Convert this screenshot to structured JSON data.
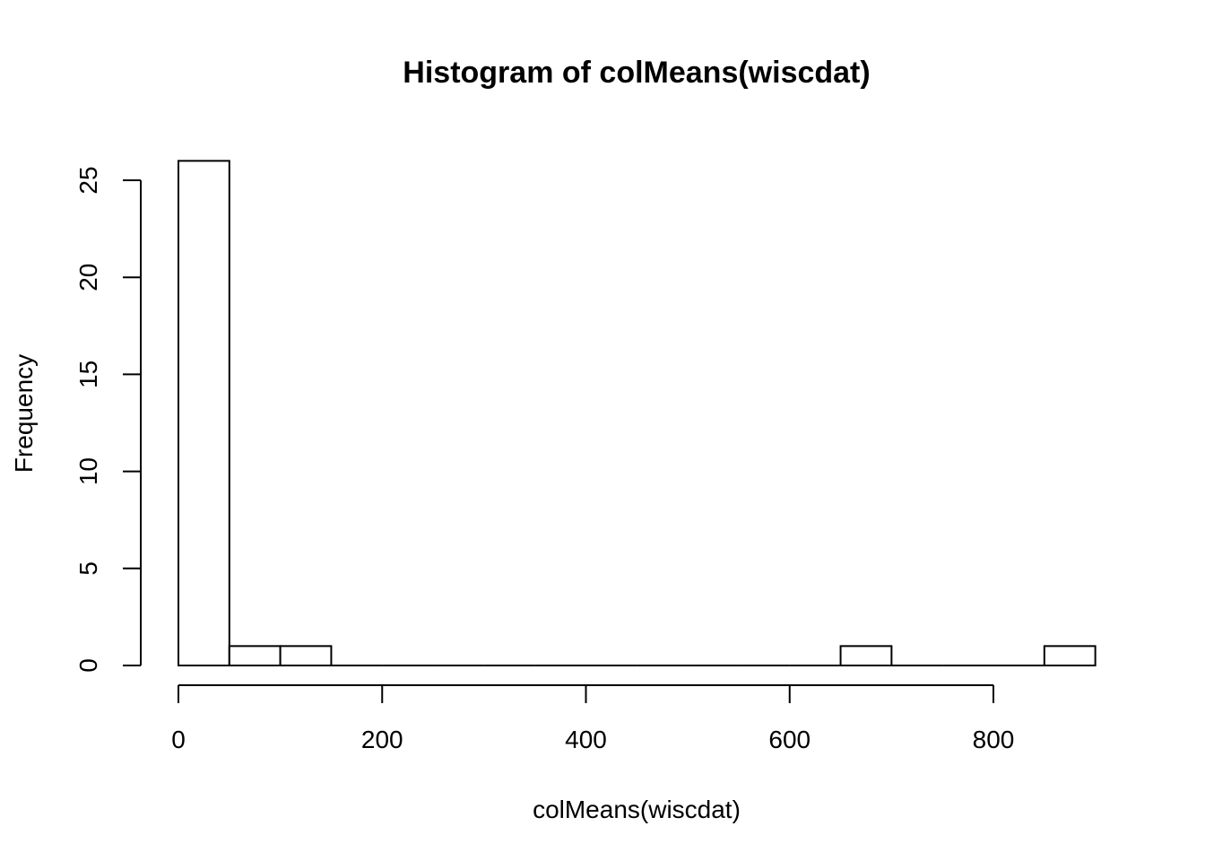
{
  "chart_data": {
    "type": "bar",
    "subtype": "histogram",
    "title": "Histogram of colMeans(wiscdat)",
    "xlabel": "colMeans(wiscdat)",
    "ylabel": "Frequency",
    "bin_width": 50,
    "bins": [
      {
        "start": 0,
        "end": 50,
        "count": 26
      },
      {
        "start": 50,
        "end": 100,
        "count": 1
      },
      {
        "start": 100,
        "end": 150,
        "count": 1
      },
      {
        "start": 150,
        "end": 200,
        "count": 0
      },
      {
        "start": 200,
        "end": 250,
        "count": 0
      },
      {
        "start": 250,
        "end": 300,
        "count": 0
      },
      {
        "start": 300,
        "end": 350,
        "count": 0
      },
      {
        "start": 350,
        "end": 400,
        "count": 0
      },
      {
        "start": 400,
        "end": 450,
        "count": 0
      },
      {
        "start": 450,
        "end": 500,
        "count": 0
      },
      {
        "start": 500,
        "end": 550,
        "count": 0
      },
      {
        "start": 550,
        "end": 600,
        "count": 0
      },
      {
        "start": 600,
        "end": 650,
        "count": 0
      },
      {
        "start": 650,
        "end": 700,
        "count": 1
      },
      {
        "start": 700,
        "end": 750,
        "count": 0
      },
      {
        "start": 750,
        "end": 800,
        "count": 0
      },
      {
        "start": 800,
        "end": 850,
        "count": 0
      },
      {
        "start": 850,
        "end": 900,
        "count": 1
      }
    ],
    "xlim": [
      0,
      900
    ],
    "ylim": [
      0,
      26
    ],
    "xticks": [
      {
        "value": 0,
        "label": "0"
      },
      {
        "value": 200,
        "label": "200"
      },
      {
        "value": 400,
        "label": "400"
      },
      {
        "value": 600,
        "label": "600"
      },
      {
        "value": 800,
        "label": "800"
      }
    ],
    "yticks": [
      {
        "value": 0,
        "label": "0"
      },
      {
        "value": 5,
        "label": "5"
      },
      {
        "value": 10,
        "label": "10"
      },
      {
        "value": 15,
        "label": "15"
      },
      {
        "value": 20,
        "label": "20"
      },
      {
        "value": 25,
        "label": "25"
      }
    ],
    "grid": false,
    "legend": "none",
    "bar_fill": "#ffffff",
    "bar_stroke": "#000000"
  }
}
